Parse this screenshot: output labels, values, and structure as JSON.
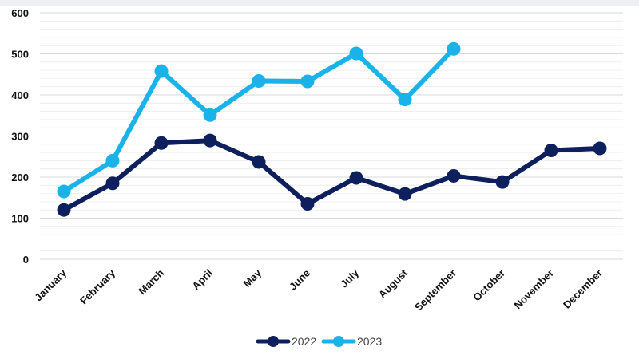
{
  "chart_data": {
    "type": "line",
    "title": "",
    "xlabel": "",
    "ylabel": "",
    "categories": [
      "January",
      "February",
      "March",
      "April",
      "May",
      "June",
      "July",
      "August",
      "September",
      "October",
      "November",
      "December"
    ],
    "ylim": [
      0,
      600
    ],
    "yticks": [
      "0",
      "100",
      "200",
      "300",
      "400",
      "500",
      "600"
    ],
    "grid": "horizontal",
    "legend_position": "bottom",
    "series": [
      {
        "name": "2022",
        "color": "#0d1f5c",
        "values": [
          120,
          185,
          283,
          289,
          237,
          135,
          198,
          159,
          203,
          188,
          265,
          270
        ]
      },
      {
        "name": "2023",
        "color": "#19b3ea",
        "values": [
          165,
          240,
          458,
          351,
          434,
          433,
          501,
          389,
          512,
          null,
          null,
          null
        ]
      }
    ]
  }
}
